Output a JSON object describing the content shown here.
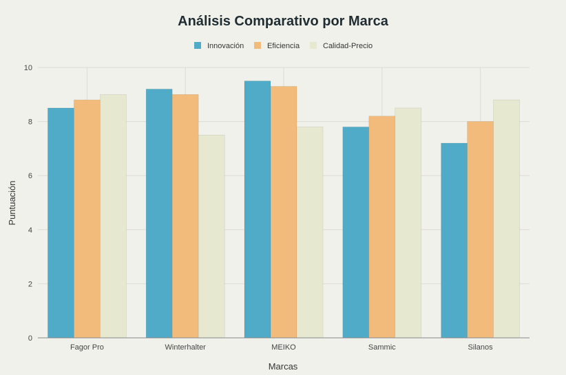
{
  "chart_data": {
    "type": "bar",
    "title": "Análisis Comparativo por Marca",
    "xlabel": "Marcas",
    "ylabel": "Puntuación",
    "ylim": [
      0,
      10
    ],
    "yticks": [
      "0",
      "2",
      "4",
      "6",
      "8",
      "10"
    ],
    "grid": true,
    "legend_position": "top-center",
    "categories": [
      "Fagor Pro",
      "Winterhalter",
      "MEIKO",
      "Sammic",
      "Silanos"
    ],
    "series": [
      {
        "name": "Innovación",
        "color": "#4fabc7",
        "values": [
          8.5,
          9.2,
          9.5,
          7.8,
          7.2
        ]
      },
      {
        "name": "Eficiencia",
        "color": "#f3bb7b",
        "values": [
          8.8,
          9.0,
          9.3,
          8.2,
          8.0
        ]
      },
      {
        "name": "Calidad-Precio",
        "color": "#e6e8d0",
        "values": [
          9.0,
          7.5,
          7.8,
          8.5,
          8.8
        ]
      }
    ]
  }
}
